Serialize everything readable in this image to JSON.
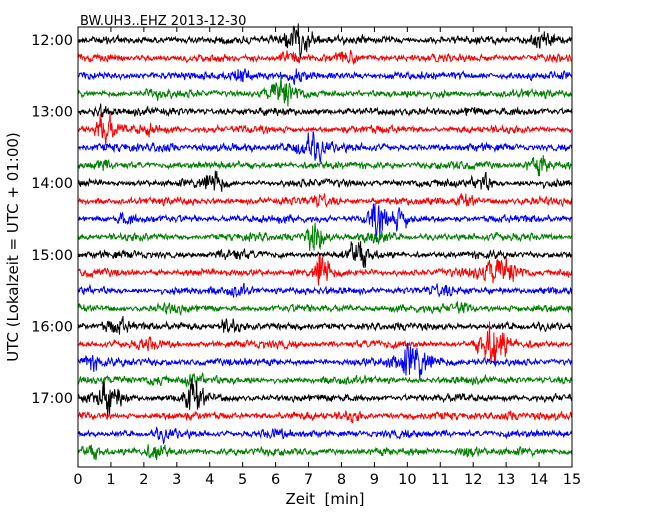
{
  "chart_data": {
    "type": "line",
    "title": "BW.UH3..EHZ 2013-12-30",
    "xlabel": "Zeit  [min]",
    "ylabel": "UTC (Lokalzeit = UTC + 01:00)",
    "xlim": [
      0,
      15
    ],
    "x_ticks": [
      "0",
      "1",
      "2",
      "3",
      "4",
      "5",
      "6",
      "7",
      "8",
      "9",
      "10",
      "11",
      "12",
      "13",
      "14",
      "15"
    ],
    "y_ticks": [
      "12:00",
      "13:00",
      "14:00",
      "15:00",
      "16:00",
      "17:00"
    ],
    "trace_colors": [
      "#000000",
      "#ff0000",
      "#0000ff",
      "#008000"
    ],
    "series": [
      {
        "start": "12:00",
        "events": [
          {
            "t": 6.7,
            "amp": 2.2,
            "dur": 0.5
          },
          {
            "t": 14.1,
            "amp": 1.7,
            "dur": 0.4
          }
        ]
      },
      {
        "start": "12:15",
        "events": [
          {
            "t": 6.4,
            "amp": 1.5,
            "dur": 0.3
          },
          {
            "t": 8.2,
            "amp": 1.4,
            "dur": 0.3
          }
        ]
      },
      {
        "start": "12:30",
        "events": [
          {
            "t": 5.0,
            "amp": 1.5,
            "dur": 0.4
          },
          {
            "t": 6.6,
            "amp": 1.4,
            "dur": 0.3
          }
        ]
      },
      {
        "start": "12:45",
        "events": [
          {
            "t": 2.4,
            "amp": 1.4,
            "dur": 0.3
          },
          {
            "t": 6.2,
            "amp": 2.2,
            "dur": 0.4
          }
        ]
      },
      {
        "start": "13:00",
        "events": [
          {
            "t": 0.7,
            "amp": 1.5,
            "dur": 0.3
          },
          {
            "t": 11.9,
            "amp": 1.3,
            "dur": 0.3
          }
        ]
      },
      {
        "start": "13:15",
        "events": [
          {
            "t": 0.8,
            "amp": 2.4,
            "dur": 0.3
          },
          {
            "t": 2.2,
            "amp": 1.3,
            "dur": 0.3
          }
        ]
      },
      {
        "start": "13:30",
        "events": [
          {
            "t": 7.0,
            "amp": 2.3,
            "dur": 0.5
          },
          {
            "t": 2.6,
            "amp": 1.4,
            "dur": 0.3
          }
        ]
      },
      {
        "start": "13:45",
        "events": [
          {
            "t": 14.0,
            "amp": 1.7,
            "dur": 0.4
          },
          {
            "t": 0.7,
            "amp": 1.3,
            "dur": 0.2
          }
        ]
      },
      {
        "start": "14:00",
        "events": [
          {
            "t": 4.1,
            "amp": 2.0,
            "dur": 0.3
          },
          {
            "t": 12.3,
            "amp": 1.7,
            "dur": 0.3
          }
        ]
      },
      {
        "start": "14:15",
        "events": [
          {
            "t": 7.4,
            "amp": 1.4,
            "dur": 0.3
          },
          {
            "t": 11.8,
            "amp": 1.4,
            "dur": 0.3
          }
        ]
      },
      {
        "start": "14:30",
        "events": [
          {
            "t": 9.1,
            "amp": 2.6,
            "dur": 0.3
          },
          {
            "t": 9.8,
            "amp": 1.8,
            "dur": 0.3
          },
          {
            "t": 1.4,
            "amp": 1.4,
            "dur": 0.3
          }
        ]
      },
      {
        "start": "14:45",
        "events": [
          {
            "t": 7.2,
            "amp": 2.3,
            "dur": 0.3
          },
          {
            "t": 9.0,
            "amp": 1.5,
            "dur": 0.3
          }
        ]
      },
      {
        "start": "15:00",
        "events": [
          {
            "t": 8.5,
            "amp": 2.3,
            "dur": 0.3
          },
          {
            "t": 4.7,
            "amp": 1.3,
            "dur": 0.3
          }
        ]
      },
      {
        "start": "15:15",
        "events": [
          {
            "t": 7.4,
            "amp": 3.2,
            "dur": 0.2
          },
          {
            "t": 12.8,
            "amp": 2.2,
            "dur": 0.6
          }
        ]
      },
      {
        "start": "15:30",
        "events": [
          {
            "t": 4.9,
            "amp": 1.4,
            "dur": 0.3
          },
          {
            "t": 11.0,
            "amp": 1.3,
            "dur": 0.3
          }
        ]
      },
      {
        "start": "15:45",
        "events": [
          {
            "t": 11.6,
            "amp": 1.4,
            "dur": 0.3
          },
          {
            "t": 2.8,
            "amp": 1.2,
            "dur": 0.3
          }
        ]
      },
      {
        "start": "16:00",
        "events": [
          {
            "t": 1.2,
            "amp": 1.6,
            "dur": 0.4
          },
          {
            "t": 4.6,
            "amp": 1.7,
            "dur": 0.3
          }
        ]
      },
      {
        "start": "16:15",
        "events": [
          {
            "t": 12.6,
            "amp": 2.8,
            "dur": 0.4
          },
          {
            "t": 2.1,
            "amp": 1.3,
            "dur": 0.3
          }
        ]
      },
      {
        "start": "16:30",
        "events": [
          {
            "t": 10.2,
            "amp": 2.4,
            "dur": 0.6
          },
          {
            "t": 0.4,
            "amp": 1.6,
            "dur": 0.3
          }
        ]
      },
      {
        "start": "16:45",
        "events": [
          {
            "t": 2.4,
            "amp": 1.4,
            "dur": 0.3
          },
          {
            "t": 3.5,
            "amp": 1.5,
            "dur": 0.3
          }
        ]
      },
      {
        "start": "17:00",
        "events": [
          {
            "t": 0.9,
            "amp": 2.3,
            "dur": 0.4
          },
          {
            "t": 3.5,
            "amp": 2.3,
            "dur": 0.3
          }
        ]
      },
      {
        "start": "17:15",
        "events": [
          {
            "t": 8.3,
            "amp": 1.4,
            "dur": 0.3
          },
          {
            "t": 13.0,
            "amp": 1.3,
            "dur": 0.3
          }
        ]
      },
      {
        "start": "17:30",
        "events": [
          {
            "t": 2.6,
            "amp": 1.3,
            "dur": 0.3
          },
          {
            "t": 6.0,
            "amp": 1.2,
            "dur": 0.3
          }
        ]
      },
      {
        "start": "17:45",
        "events": [
          {
            "t": 0.4,
            "amp": 1.6,
            "dur": 0.3
          },
          {
            "t": 2.4,
            "amp": 1.6,
            "dur": 0.3
          },
          {
            "t": 11.8,
            "amp": 1.5,
            "dur": 0.3
          }
        ]
      }
    ]
  }
}
